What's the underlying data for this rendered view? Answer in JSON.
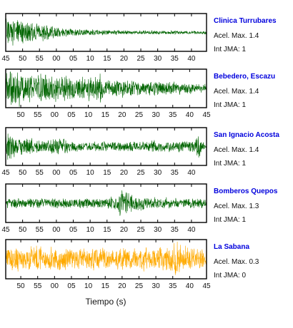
{
  "colors": {
    "green": "#006400",
    "orange": "#ffaa00",
    "frame": "#000000",
    "station_name": "#0000dd"
  },
  "chart_data": {
    "type": "line",
    "xlabel": "Tiempo (s)",
    "panels": [
      {
        "station": "Clinica Turrubares",
        "acel_max": "Acel. Max. 1.4",
        "int_jma": "Int JMA: 1",
        "color": "#006400",
        "x_ticks": [
          "45",
          "50",
          "55",
          "00",
          "05",
          "10",
          "15",
          "20",
          "25",
          "30",
          "35",
          "40"
        ],
        "envelope": [
          [
            0,
            1.0
          ],
          [
            0.08,
            0.75
          ],
          [
            0.2,
            0.45
          ],
          [
            0.35,
            0.2
          ],
          [
            0.6,
            0.12
          ],
          [
            1,
            0.1
          ]
        ],
        "noise": 0.08,
        "seed": 11
      },
      {
        "station": "Bebedero, Escazu",
        "acel_max": "Acel. Max. 1.4",
        "int_jma": "Int JMA: 1",
        "color": "#006400",
        "x_ticks": [
          "50",
          "55",
          "00",
          "05",
          "10",
          "15",
          "20",
          "25",
          "30",
          "35",
          "40",
          "45"
        ],
        "envelope": [
          [
            0,
            1.0
          ],
          [
            0.15,
            0.85
          ],
          [
            0.35,
            0.65
          ],
          [
            0.46,
            0.9
          ],
          [
            0.5,
            0.55
          ],
          [
            0.7,
            0.4
          ],
          [
            1,
            0.3
          ]
        ],
        "noise": 0.2,
        "seed": 23
      },
      {
        "station": "San Ignacio Acosta",
        "acel_max": "Acel. Max. 1.4",
        "int_jma": "Int JMA: 1",
        "color": "#006400",
        "x_ticks": [
          "45",
          "50",
          "55",
          "00",
          "05",
          "10",
          "15",
          "20",
          "25",
          "30",
          "35",
          "40"
        ],
        "envelope": [
          [
            0,
            0.95
          ],
          [
            0.05,
            0.6
          ],
          [
            0.2,
            0.4
          ],
          [
            0.29,
            0.55
          ],
          [
            0.32,
            0.3
          ],
          [
            0.72,
            0.3
          ],
          [
            0.74,
            0.6
          ],
          [
            0.77,
            0.3
          ],
          [
            0.94,
            0.35
          ],
          [
            0.96,
            0.85
          ],
          [
            0.98,
            0.35
          ],
          [
            1,
            0.2
          ]
        ],
        "noise": 0.1,
        "seed": 37
      },
      {
        "station": "Bomberos Quepos",
        "acel_max": "Acel. Max. 1.3",
        "int_jma": "Int JMA: 1",
        "color": "#006400",
        "x_ticks": [
          "45",
          "50",
          "55",
          "00",
          "05",
          "10",
          "15",
          "20",
          "25",
          "30",
          "35",
          "40"
        ],
        "envelope": [
          [
            0,
            0.3
          ],
          [
            0.5,
            0.3
          ],
          [
            0.55,
            0.5
          ],
          [
            0.57,
            1.0
          ],
          [
            0.59,
            0.95
          ],
          [
            0.62,
            0.55
          ],
          [
            0.68,
            0.45
          ],
          [
            0.72,
            0.35
          ],
          [
            1,
            0.28
          ]
        ],
        "noise": 0.06,
        "seed": 51
      },
      {
        "station": "La Sabana",
        "acel_max": "Acel. Max. 0.3",
        "int_jma": "Int JMA: 0",
        "color": "#ffaa00",
        "x_ticks": [
          "50",
          "55",
          "00",
          "05",
          "10",
          "15",
          "20",
          "25",
          "30",
          "35",
          "40",
          "45"
        ],
        "envelope": [
          [
            0,
            0.55
          ],
          [
            0.15,
            0.7
          ],
          [
            0.17,
            0.9
          ],
          [
            0.19,
            0.6
          ],
          [
            0.5,
            0.6
          ],
          [
            0.82,
            0.65
          ],
          [
            0.85,
            1.0
          ],
          [
            0.88,
            0.7
          ],
          [
            1,
            0.6
          ]
        ],
        "noise": 0.25,
        "seed": 67
      }
    ]
  }
}
